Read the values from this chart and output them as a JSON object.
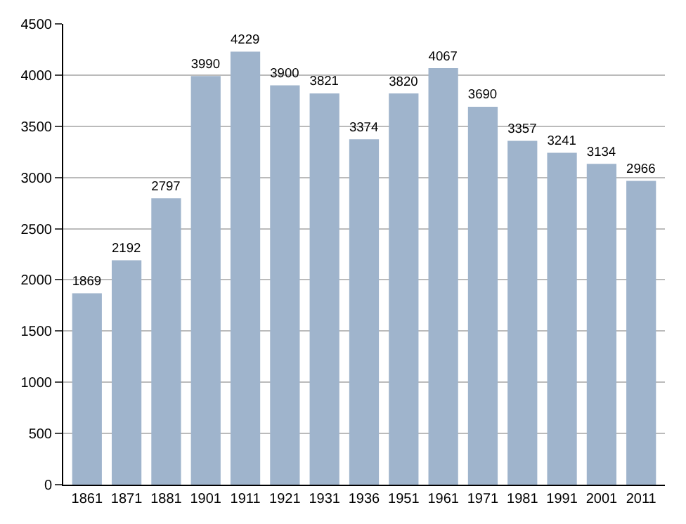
{
  "chart_data": {
    "type": "bar",
    "categories": [
      "1861",
      "1871",
      "1881",
      "1901",
      "1911",
      "1921",
      "1931",
      "1936",
      "1951",
      "1961",
      "1971",
      "1981",
      "1991",
      "2001",
      "2011"
    ],
    "values": [
      1869,
      2192,
      2797,
      3990,
      4229,
      3900,
      3821,
      3374,
      3820,
      4067,
      3690,
      3357,
      3241,
      3134,
      2966
    ],
    "color": "#9fb4cc",
    "ylim": [
      0,
      4500
    ],
    "yticks": [
      0,
      500,
      1000,
      1500,
      2000,
      2500,
      3000,
      3500,
      4000,
      4500
    ],
    "grid": "y",
    "data_labels": true
  }
}
